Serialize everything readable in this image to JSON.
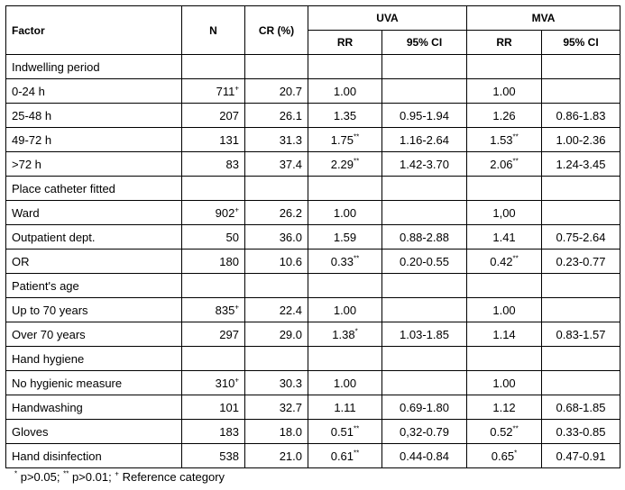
{
  "header": {
    "factor": "Factor",
    "n": "N",
    "cr": "CR (%)",
    "uva": "UVA",
    "mva": "MVA",
    "rr": "RR",
    "ci": "95% CI"
  },
  "rows": [
    {
      "type": "group",
      "label": "Indwelling period"
    },
    {
      "type": "data",
      "label": "0-24 h",
      "n": "711",
      "n_sup": "+",
      "cr": "20.7",
      "uva_rr": "1.00",
      "uva_rr_sup": "",
      "uva_ci": "",
      "mva_rr": "1.00",
      "mva_rr_sup": "",
      "mva_ci": ""
    },
    {
      "type": "data",
      "label": "25-48 h",
      "n": "207",
      "n_sup": "",
      "cr": "26.1",
      "uva_rr": "1.35",
      "uva_rr_sup": "",
      "uva_ci": "0.95-1.94",
      "mva_rr": "1.26",
      "mva_rr_sup": "",
      "mva_ci": "0.86-1.83"
    },
    {
      "type": "data",
      "label": "49-72 h",
      "n": "131",
      "n_sup": "",
      "cr": "31.3",
      "uva_rr": "1.75",
      "uva_rr_sup": "**",
      "uva_ci": "1.16-2.64",
      "mva_rr": "1.53",
      "mva_rr_sup": "**",
      "mva_ci": "1.00-2.36"
    },
    {
      "type": "data",
      "label": ">72 h",
      "n": "83",
      "n_sup": "",
      "cr": "37.4",
      "uva_rr": "2.29",
      "uva_rr_sup": "**",
      "uva_ci": "1.42-3.70",
      "mva_rr": "2.06",
      "mva_rr_sup": "**",
      "mva_ci": "1.24-3.45"
    },
    {
      "type": "group",
      "label": "Place catheter fitted"
    },
    {
      "type": "data",
      "label": "Ward",
      "n": "902",
      "n_sup": "+",
      "cr": "26.2",
      "uva_rr": "1.00",
      "uva_rr_sup": "",
      "uva_ci": "",
      "mva_rr": "1,00",
      "mva_rr_sup": "",
      "mva_ci": ""
    },
    {
      "type": "data",
      "label": "Outpatient dept.",
      "n": "50",
      "n_sup": "",
      "cr": "36.0",
      "uva_rr": "1.59",
      "uva_rr_sup": "",
      "uva_ci": "0.88-2.88",
      "mva_rr": "1.41",
      "mva_rr_sup": "",
      "mva_ci": "0.75-2.64"
    },
    {
      "type": "data",
      "label": "OR",
      "n": "180",
      "n_sup": "",
      "cr": "10.6",
      "uva_rr": "0.33",
      "uva_rr_sup": "**",
      "uva_ci": "0.20-0.55",
      "mva_rr": "0.42",
      "mva_rr_sup": "**",
      "mva_ci": "0.23-0.77"
    },
    {
      "type": "group",
      "label": "Patient's age"
    },
    {
      "type": "data",
      "label": "Up to 70 years",
      "n": "835",
      "n_sup": "+",
      "cr": "22.4",
      "uva_rr": "1.00",
      "uva_rr_sup": "",
      "uva_ci": "",
      "mva_rr": "1.00",
      "mva_rr_sup": "",
      "mva_ci": ""
    },
    {
      "type": "data",
      "label": "Over 70 years",
      "n": "297",
      "n_sup": "",
      "cr": "29.0",
      "uva_rr": "1.38",
      "uva_rr_sup": "*",
      "uva_ci": "1.03-1.85",
      "mva_rr": "1.14",
      "mva_rr_sup": "",
      "mva_ci": "0.83-1.57"
    },
    {
      "type": "group",
      "label": "Hand hygiene"
    },
    {
      "type": "data",
      "label": "No hygienic measure",
      "n": "310",
      "n_sup": "+",
      "cr": "30.3",
      "uva_rr": "1.00",
      "uva_rr_sup": "",
      "uva_ci": "",
      "mva_rr": "1.00",
      "mva_rr_sup": "",
      "mva_ci": ""
    },
    {
      "type": "data",
      "label": "Handwashing",
      "n": "101",
      "n_sup": "",
      "cr": "32.7",
      "uva_rr": "1.11",
      "uva_rr_sup": "",
      "uva_ci": "0.69-1.80",
      "mva_rr": "1.12",
      "mva_rr_sup": "",
      "mva_ci": "0.68-1.85"
    },
    {
      "type": "data",
      "label": "Gloves",
      "n": "183",
      "n_sup": "",
      "cr": "18.0",
      "uva_rr": "0.51",
      "uva_rr_sup": "**",
      "uva_ci": "0,32-0.79",
      "mva_rr": "0.52",
      "mva_rr_sup": "**",
      "mva_ci": "0.33-0.85"
    },
    {
      "type": "data",
      "label": "Hand disinfection",
      "n": "538",
      "n_sup": "",
      "cr": "21.0",
      "uva_rr": "0.61",
      "uva_rr_sup": "**",
      "uva_ci": "0.44-0.84",
      "mva_rr": "0.65",
      "mva_rr_sup": "*",
      "mva_ci": "0.47-0.91"
    }
  ],
  "footnote": {
    "p1_mark": "*",
    "p1_text": " p>0.05; ",
    "p2_mark": "**",
    "p2_text": " p>0.01; ",
    "ref_mark": "+",
    "ref_text": " Reference category"
  }
}
